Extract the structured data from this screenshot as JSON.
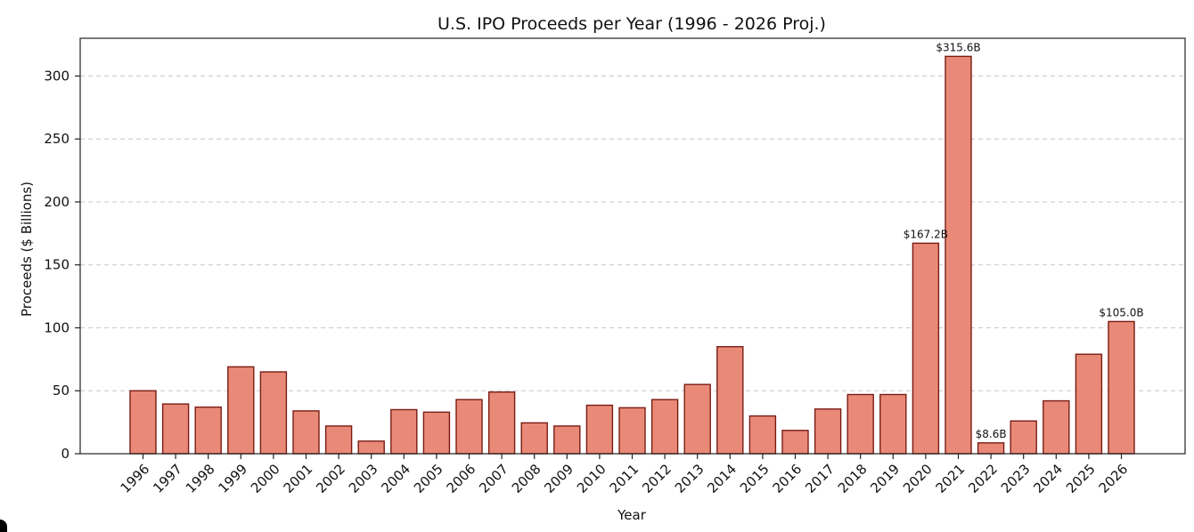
{
  "chart_data": {
    "type": "bar",
    "title": "U.S. IPO Proceeds per Year (1996 - 2026 Proj.)",
    "xlabel": "Year",
    "ylabel": "Proceeds ($ Billions)",
    "ylim": [
      0,
      330
    ],
    "yticks": [
      0,
      50,
      100,
      150,
      200,
      250,
      300
    ],
    "grid": "horizontal dashed",
    "colors": {
      "bar_fill": "#e98a78",
      "bar_edge": "#7a1c14"
    },
    "categories": [
      "1996",
      "1997",
      "1998",
      "1999",
      "2000",
      "2001",
      "2002",
      "2003",
      "2004",
      "2005",
      "2006",
      "2007",
      "2008",
      "2009",
      "2010",
      "2011",
      "2012",
      "2013",
      "2014",
      "2015",
      "2016",
      "2017",
      "2018",
      "2019",
      "2020",
      "2021",
      "2022",
      "2023",
      "2024",
      "2025",
      "2026"
    ],
    "values": [
      50,
      39.5,
      37,
      69,
      65,
      34,
      22,
      10,
      35,
      33,
      43,
      49,
      24.5,
      22,
      38.5,
      36.5,
      43,
      55,
      85,
      30,
      18.5,
      35.5,
      47,
      47,
      167.2,
      315.6,
      8.6,
      26,
      42,
      79,
      105.0
    ],
    "annotations": [
      {
        "category": "2020",
        "text": "$167.2B"
      },
      {
        "category": "2021",
        "text": "$315.6B"
      },
      {
        "category": "2022",
        "text": "$8.6B"
      },
      {
        "category": "2026",
        "text": "$105.0B"
      }
    ]
  }
}
